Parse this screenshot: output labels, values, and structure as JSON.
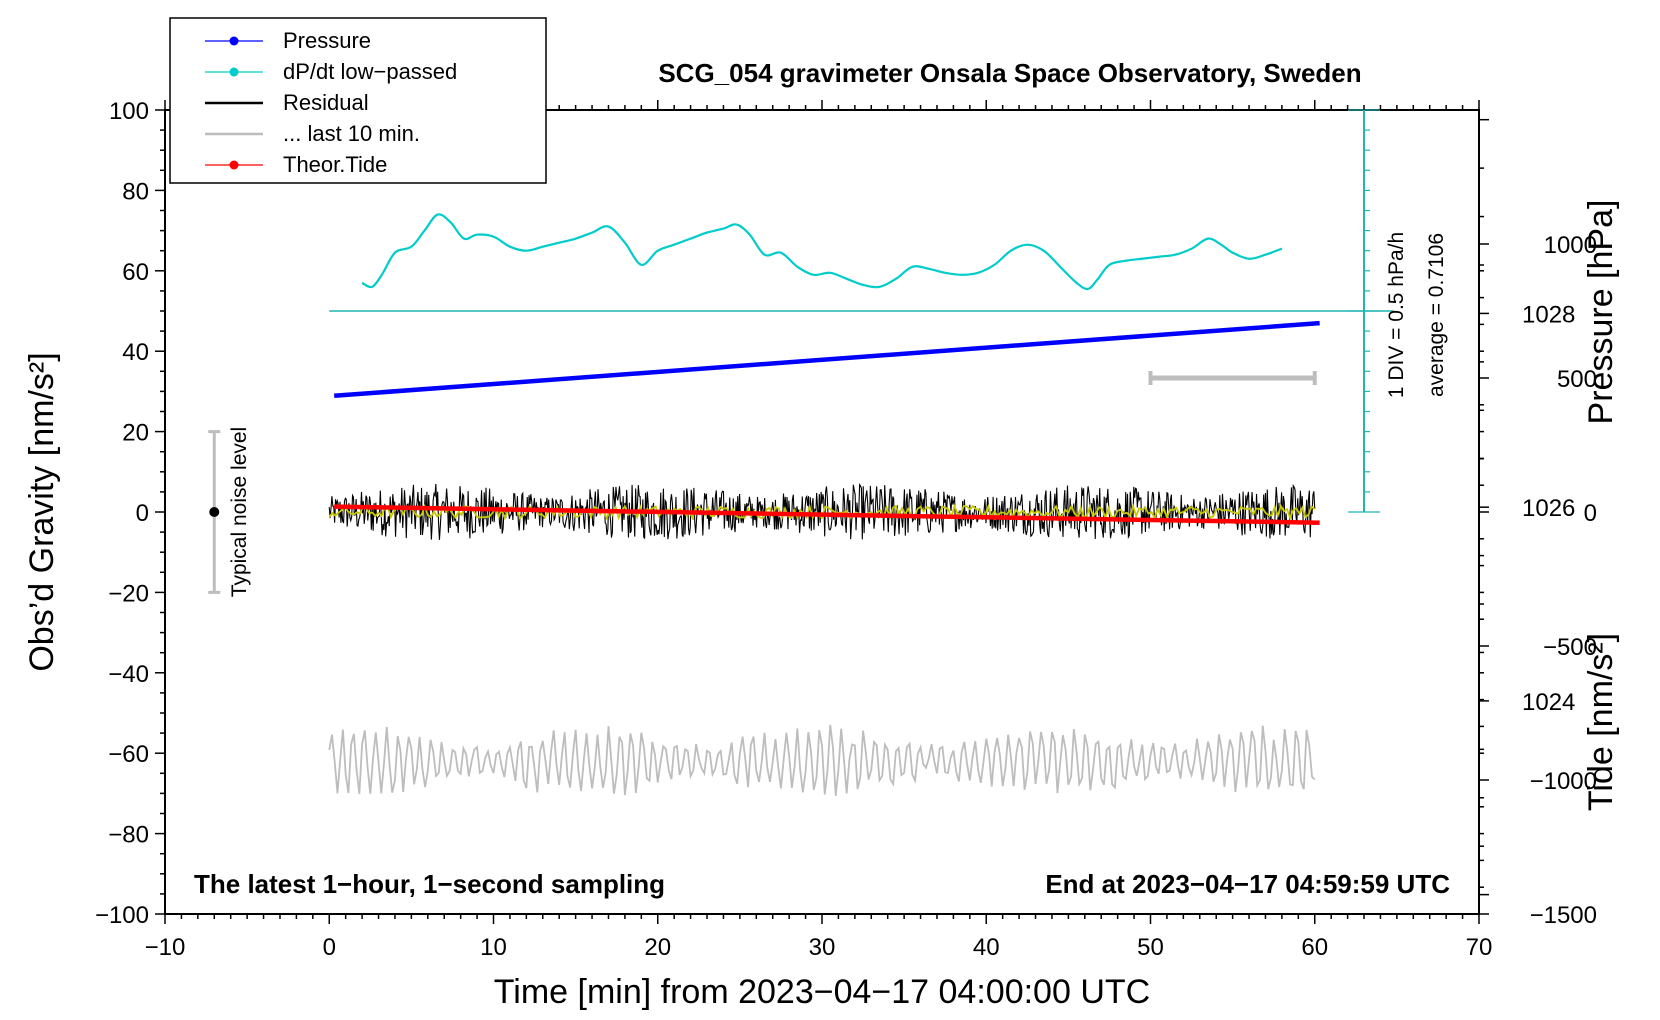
{
  "chart_data": {
    "type": "line",
    "title": "SCG_054 gravimeter Onsala Space Observatory, Sweden",
    "xlabel": "Time [min] from 2023−04−17 04:00:00 UTC",
    "ylabel_left": "Obs’d Gravity [nm/s²]",
    "ylabel_right_pressure": "Pressure [hPa]",
    "ylabel_right_tide": "Tide [nm/s²]",
    "xlim": [
      -10,
      70
    ],
    "ylim": [
      -100,
      100
    ],
    "pressure_axis_range": [
      1021.8,
      1030.1
    ],
    "tide_axis_range": [
      -1500,
      1500
    ],
    "x_ticks": [
      -10,
      0,
      10,
      20,
      30,
      40,
      50,
      60,
      70
    ],
    "x_tick_labels": [
      "−10",
      "0",
      "10",
      "20",
      "30",
      "40",
      "50",
      "60",
      "70"
    ],
    "y_ticks": [
      100,
      80,
      60,
      40,
      20,
      0,
      -20,
      -40,
      -60,
      -80,
      -100
    ],
    "y_tick_labels": [
      "100",
      "80",
      "60",
      "40",
      "20",
      "0",
      "−20",
      "−40",
      "−60",
      "−80",
      "−100"
    ],
    "pressure_ticks": [
      1028,
      1026,
      1024
    ],
    "pressure_tick_labels": [
      "1028",
      "1026",
      "1024"
    ],
    "tide_ticks": [
      1000,
      500,
      0,
      -500,
      -1000,
      -1500
    ],
    "tide_tick_labels": [
      "1000",
      "500",
      "0",
      "−500",
      "−1000",
      "−1500"
    ],
    "legend": [
      {
        "label": "Pressure",
        "color": "#0000ff",
        "marker": true
      },
      {
        "label": "dP/dt low−passed",
        "color": "#00cccc",
        "marker": true
      },
      {
        "label": "Residual",
        "color": "#000000",
        "marker": false
      },
      {
        "label": "... last 10 min.",
        "color": "#bdbdbd",
        "marker": false
      },
      {
        "label": "Theor.Tide",
        "color": "#ff0000",
        "marker": true
      }
    ],
    "series": [
      {
        "name": "Pressure",
        "axis": "pressure",
        "color": "#0000ff",
        "x": [
          0.3,
          60.3
        ],
        "values": [
          1027.15,
          1027.9
        ]
      },
      {
        "name": "dP/dt low−passed",
        "axis": "gravity",
        "color": "#00cccc",
        "x": [
          2.0,
          2.6,
          3.2,
          4.0,
          5.0,
          5.8,
          6.6,
          7.4,
          8.2,
          9.0,
          10.0,
          11.0,
          12.0,
          13.0,
          14.0,
          15.0,
          16.0,
          17.0,
          18.0,
          19.0,
          20.0,
          21.0,
          22.0,
          23.0,
          24.0,
          24.8,
          25.6,
          26.5,
          27.5,
          28.5,
          29.5,
          30.5,
          31.5,
          32.5,
          33.5,
          34.5,
          35.5,
          36.5,
          37.5,
          38.5,
          39.5,
          40.5,
          41.5,
          42.5,
          43.5,
          44.5,
          45.5,
          46.2,
          46.8,
          47.5,
          48.5,
          49.5,
          50.5,
          51.5,
          52.5,
          53.5,
          54.3,
          55.0,
          56.0,
          57.0,
          58.0
        ],
        "values": [
          57,
          56,
          59,
          64.5,
          66,
          70,
          74,
          72,
          68,
          69,
          68.5,
          66,
          65,
          66,
          67,
          68,
          69.5,
          71,
          67,
          61.5,
          65,
          66.5,
          68,
          69.5,
          70.5,
          71.5,
          69,
          64,
          64.5,
          61,
          59,
          59.5,
          58,
          56.5,
          56,
          58,
          61,
          60.5,
          59.5,
          59,
          59.5,
          61.5,
          65,
          66.5,
          65,
          61,
          57,
          55.5,
          58,
          61.5,
          62.5,
          63,
          63.5,
          64,
          65.5,
          68,
          66.5,
          64.5,
          63,
          64,
          65.5
        ]
      },
      {
        "name": "Residual",
        "axis": "gravity",
        "color": "#000000",
        "x_range": [
          0,
          60
        ],
        "mean": 0,
        "amplitude": 7
      },
      {
        "name": "Residual low-passed",
        "axis": "gravity",
        "color": "#c8c800",
        "x_range": [
          0,
          60
        ],
        "mean": 0,
        "amplitude": 1.5
      },
      {
        "name": "Theor.Tide",
        "axis": "tide",
        "color": "#ff0000",
        "x": [
          0.3,
          60.3
        ],
        "values": [
          20,
          -40
        ]
      },
      {
        "name": "... last 10 min.",
        "axis": "gravity",
        "color": "#bdbdbd",
        "x_range": [
          0,
          60
        ],
        "mean": -62,
        "amplitude": 8
      }
    ],
    "pressure_zero_line": {
      "gravity_value": 50,
      "x_range": [
        0,
        63
      ]
    },
    "scale_bar": {
      "x": 63,
      "gravity_range": [
        0,
        100
      ],
      "label_1": "1 DIV = 0.5 hPa/h",
      "label_2": "average = 0.7106"
    },
    "noise_bar": {
      "x": -7,
      "gravity_range": [
        -20,
        20
      ],
      "center": 0,
      "label": "Typical noise level"
    },
    "window_bar": {
      "x_range": [
        50,
        60
      ],
      "tide_value": 500
    },
    "annotation_left": "The latest 1−hour, 1−second sampling",
    "annotation_right": "End at 2023−04−17 04:59:59 UTC"
  }
}
